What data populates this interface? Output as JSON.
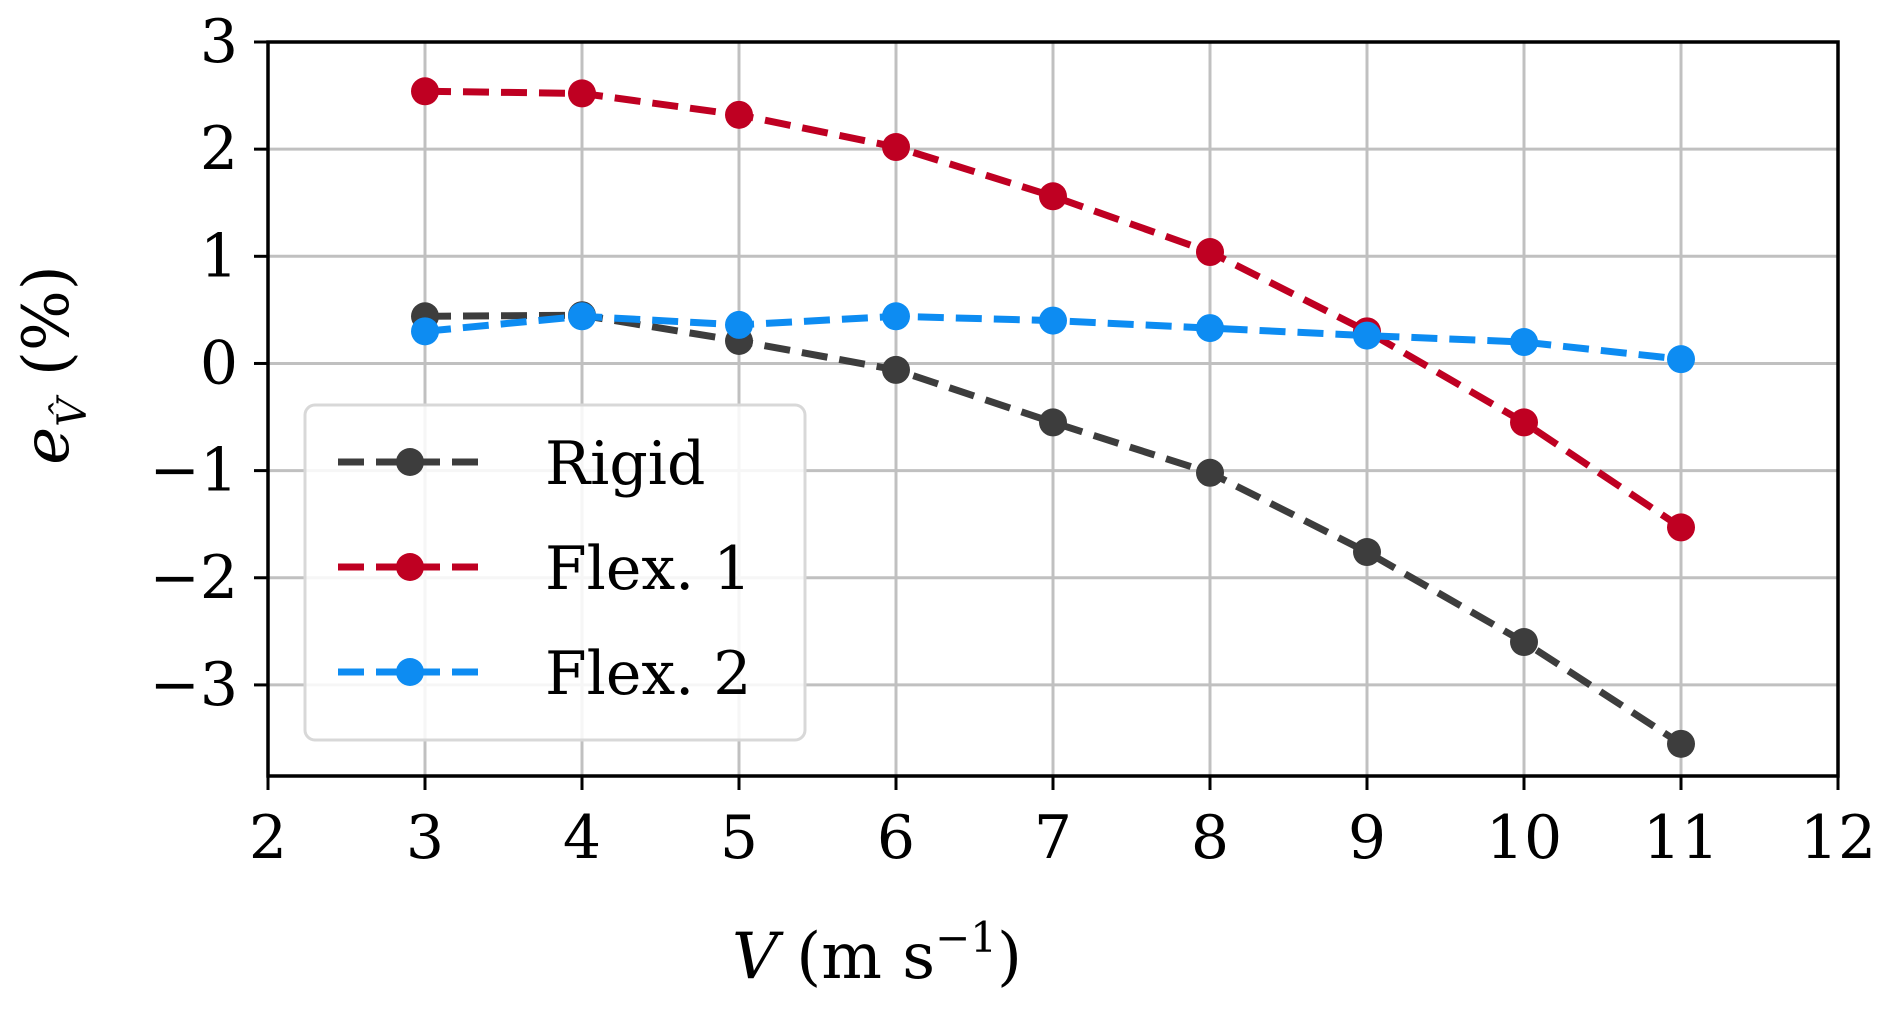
{
  "chart_data": {
    "type": "line",
    "title": "",
    "xlabel": {
      "symbol": "V",
      "unit_open": "(m s",
      "unit_exp": "−1",
      "unit_close": ")"
    },
    "ylabel": {
      "symbol": "e",
      "subscript": "V̂",
      "unit": "(%)"
    },
    "xlim": [
      2,
      12
    ],
    "ylim": [
      -3.85,
      3
    ],
    "xticks": [
      2,
      3,
      4,
      5,
      6,
      7,
      8,
      9,
      10,
      11,
      12
    ],
    "yticks": [
      3,
      2,
      1,
      0,
      -1,
      -2,
      -3
    ],
    "xtick_labels": [
      "2",
      "3",
      "4",
      "5",
      "6",
      "7",
      "8",
      "9",
      "10",
      "11",
      "12"
    ],
    "ytick_labels": [
      "3",
      "2",
      "1",
      "0",
      "−1",
      "−2",
      "−3"
    ],
    "grid": true,
    "legend_position": "lower-left",
    "x": [
      3,
      4,
      5,
      6,
      7,
      8,
      9,
      10,
      11
    ],
    "series": [
      {
        "name": "Rigid",
        "color": "#3d3d3d",
        "linestyle": "dashed",
        "marker": "circle",
        "values": [
          0.44,
          0.45,
          0.21,
          -0.06,
          -0.55,
          -1.02,
          -1.76,
          -2.6,
          -3.55
        ]
      },
      {
        "name": "Flex. 1",
        "color": "#bf0022",
        "linestyle": "dashed",
        "marker": "circle",
        "values": [
          2.54,
          2.52,
          2.32,
          2.02,
          1.56,
          1.04,
          0.3,
          -0.55,
          -1.53
        ]
      },
      {
        "name": "Flex. 2",
        "color": "#0d8cf2",
        "linestyle": "dashed",
        "marker": "circle",
        "values": [
          0.3,
          0.44,
          0.36,
          0.44,
          0.4,
          0.33,
          0.26,
          0.2,
          0.04
        ]
      }
    ]
  }
}
